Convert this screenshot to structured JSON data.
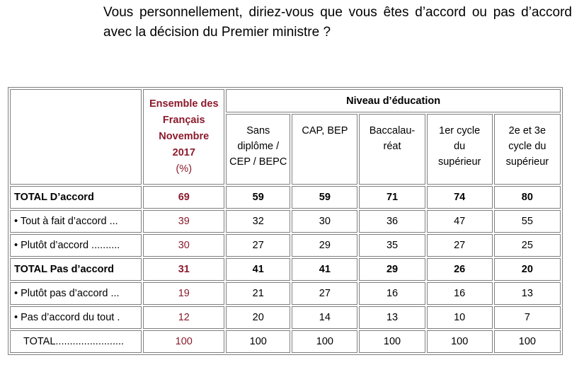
{
  "question": "Vous personnellement, diriez-vous que vous êtes d’accord ou pas d’accord avec la décision du Premier ministre ?",
  "header": {
    "ensemble_line1": "Ensemble des",
    "ensemble_line2": "Français",
    "ensemble_line3": "Novembre",
    "ensemble_line4": "2017",
    "ensemble_unit": "(%)",
    "niveau": "Niveau d’éducation",
    "columns": [
      [
        "Sans",
        "diplôme /",
        "CEP / BEPC"
      ],
      [
        "CAP, BEP"
      ],
      [
        "Baccalau-",
        "réat"
      ],
      [
        "1er cycle",
        "du",
        "supérieur"
      ],
      [
        "2e et 3e",
        "cycle du",
        "supérieur"
      ]
    ]
  },
  "rows": [
    {
      "label": "TOTAL D’accord",
      "values": [
        "69",
        "59",
        "59",
        "71",
        "74",
        "80"
      ]
    },
    {
      "label": "• Tout à fait d’accord ...",
      "values": [
        "39",
        "32",
        "30",
        "36",
        "47",
        "55"
      ]
    },
    {
      "label": "• Plutôt d’accord ..........",
      "values": [
        "30",
        "27",
        "29",
        "35",
        "27",
        "25"
      ]
    },
    {
      "label": "TOTAL Pas d’accord",
      "values": [
        "31",
        "41",
        "41",
        "29",
        "26",
        "20"
      ]
    },
    {
      "label": "• Plutôt pas d’accord ...",
      "values": [
        "19",
        "21",
        "27",
        "16",
        "16",
        "13"
      ]
    },
    {
      "label": "• Pas d’accord du tout .",
      "values": [
        "12",
        "20",
        "14",
        "13",
        "10",
        "7"
      ]
    },
    {
      "label": "TOTAL........................",
      "values": [
        "100",
        "100",
        "100",
        "100",
        "100",
        "100"
      ]
    }
  ],
  "colors": {
    "ensemble": "#8b1a2c",
    "border": "#7f7f7f"
  }
}
